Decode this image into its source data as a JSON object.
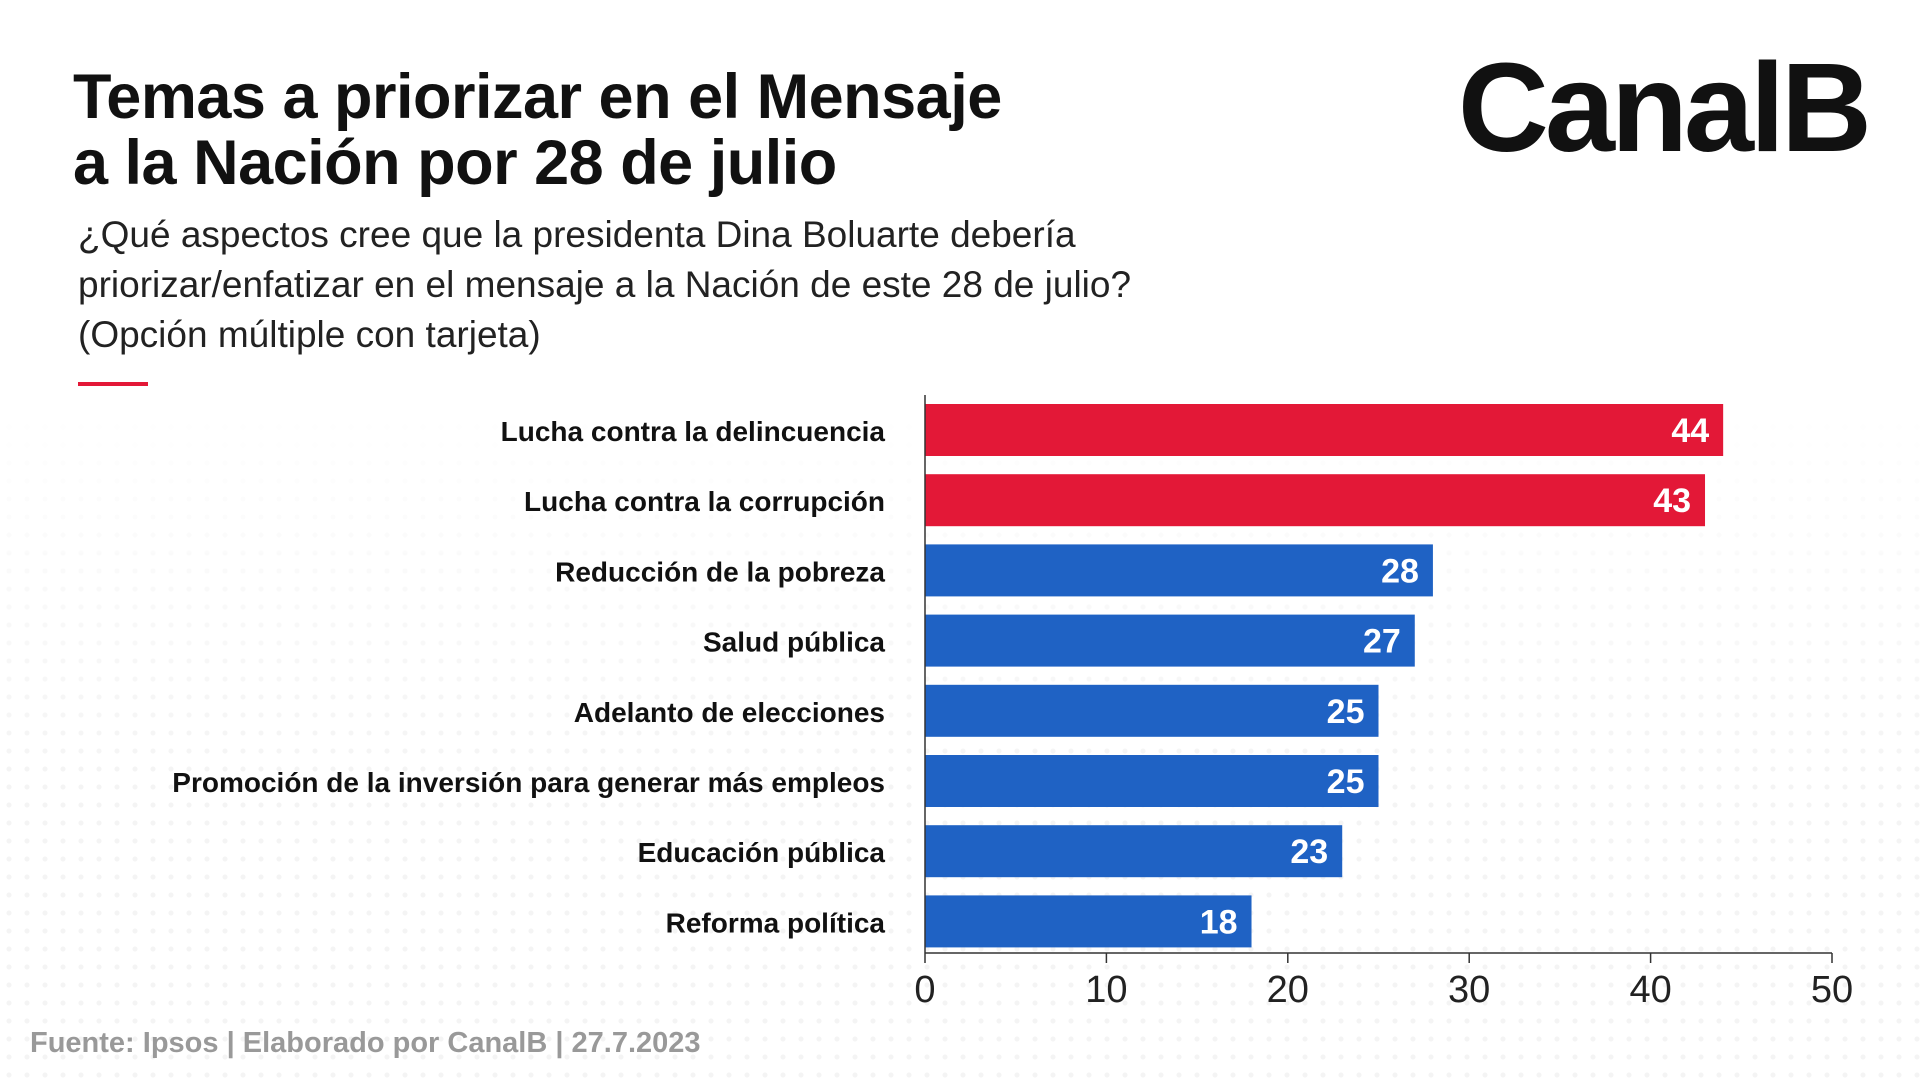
{
  "header": {
    "title_line1": "Temas a priorizar en el Mensaje",
    "title_line2": "a la Nación por 28 de julio",
    "subtitle_line1": "¿Qué aspectos cree que la presidenta Dina Boluarte debería",
    "subtitle_line2": "priorizar/enfatizar en el mensaje a la Nación de este 28 de julio?",
    "subtitle_line3": "(Opción múltiple con tarjeta)"
  },
  "brand": {
    "logo_text": "CanalB"
  },
  "footer": {
    "source": "Fuente: Ipsos | Elaborado por CanalB | 27.7.2023"
  },
  "colors": {
    "accent": "#E31837",
    "bar_red": "#E31837",
    "bar_blue": "#1F62C4",
    "text": "#111111",
    "source_text": "#999999"
  },
  "chart_data": {
    "type": "bar",
    "orientation": "horizontal",
    "categories": [
      "Lucha contra la delincuencia",
      "Lucha contra la corrupción",
      "Reducción de la pobreza",
      "Salud pública",
      "Adelanto de elecciones",
      "Promoción de la inversión para generar más empleos",
      "Educación pública",
      "Reforma política"
    ],
    "values": [
      44,
      43,
      28,
      27,
      25,
      25,
      23,
      18
    ],
    "bar_colors": [
      "#E31837",
      "#E31837",
      "#1F62C4",
      "#1F62C4",
      "#1F62C4",
      "#1F62C4",
      "#1F62C4",
      "#1F62C4"
    ],
    "xlim": [
      0,
      50
    ],
    "xticks": [
      0,
      10,
      20,
      30,
      40,
      50
    ],
    "grid": false,
    "legend": "none"
  }
}
